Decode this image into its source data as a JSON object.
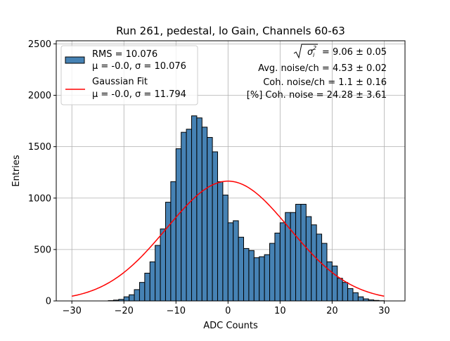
{
  "chart_data": {
    "type": "histogram",
    "title": "Run 261, pedestal, lo Gain, Channels 60-63",
    "xlabel": "ADC Counts",
    "ylabel": "Entries",
    "xlim": [
      -33,
      34
    ],
    "ylim": [
      0,
      2530
    ],
    "grid": true,
    "xticks": [
      -30,
      -20,
      -10,
      0,
      10,
      20,
      30
    ],
    "yticks": [
      0,
      500,
      1000,
      1500,
      2000,
      2500
    ],
    "bin_width": 1,
    "bins": [
      {
        "x0": -30,
        "count": 0
      },
      {
        "x0": -29,
        "count": 0
      },
      {
        "x0": -28,
        "count": 0
      },
      {
        "x0": -27,
        "count": 0
      },
      {
        "x0": -26,
        "count": 0
      },
      {
        "x0": -25,
        "count": 0
      },
      {
        "x0": -24,
        "count": 0
      },
      {
        "x0": -23,
        "count": 3
      },
      {
        "x0": -22,
        "count": 8
      },
      {
        "x0": -21,
        "count": 15
      },
      {
        "x0": -20,
        "count": 40
      },
      {
        "x0": -19,
        "count": 60
      },
      {
        "x0": -18,
        "count": 110
      },
      {
        "x0": -17,
        "count": 180
      },
      {
        "x0": -16,
        "count": 270
      },
      {
        "x0": -15,
        "count": 380
      },
      {
        "x0": -14,
        "count": 540
      },
      {
        "x0": -13,
        "count": 700
      },
      {
        "x0": -12,
        "count": 960
      },
      {
        "x0": -11,
        "count": 1160
      },
      {
        "x0": -10,
        "count": 1480
      },
      {
        "x0": -9,
        "count": 1640
      },
      {
        "x0": -8,
        "count": 1670
      },
      {
        "x0": -7,
        "count": 1800
      },
      {
        "x0": -6,
        "count": 1780
      },
      {
        "x0": -5,
        "count": 1690
      },
      {
        "x0": -4,
        "count": 1590
      },
      {
        "x0": -3,
        "count": 1450
      },
      {
        "x0": -2,
        "count": 1160
      },
      {
        "x0": -1,
        "count": 1030
      },
      {
        "x0": 0,
        "count": 760
      },
      {
        "x0": 1,
        "count": 780
      },
      {
        "x0": 2,
        "count": 620
      },
      {
        "x0": 3,
        "count": 510
      },
      {
        "x0": 4,
        "count": 490
      },
      {
        "x0": 5,
        "count": 420
      },
      {
        "x0": 6,
        "count": 430
      },
      {
        "x0": 7,
        "count": 450
      },
      {
        "x0": 8,
        "count": 560
      },
      {
        "x0": 9,
        "count": 660
      },
      {
        "x0": 10,
        "count": 760
      },
      {
        "x0": 11,
        "count": 860
      },
      {
        "x0": 12,
        "count": 860
      },
      {
        "x0": 13,
        "count": 940
      },
      {
        "x0": 14,
        "count": 940
      },
      {
        "x0": 15,
        "count": 820
      },
      {
        "x0": 16,
        "count": 740
      },
      {
        "x0": 17,
        "count": 650
      },
      {
        "x0": 18,
        "count": 560
      },
      {
        "x0": 19,
        "count": 380
      },
      {
        "x0": 20,
        "count": 340
      },
      {
        "x0": 21,
        "count": 220
      },
      {
        "x0": 22,
        "count": 180
      },
      {
        "x0": 23,
        "count": 120
      },
      {
        "x0": 24,
        "count": 80
      },
      {
        "x0": 25,
        "count": 40
      },
      {
        "x0": 26,
        "count": 20
      },
      {
        "x0": 27,
        "count": 10
      },
      {
        "x0": 28,
        "count": 5
      },
      {
        "x0": 29,
        "count": 2
      }
    ],
    "series": [
      {
        "name": "RMS = 10.076",
        "subname": "μ = -0.0, σ = 10.076",
        "kind": "histogram",
        "color": "#4682b4",
        "edge": "#000000"
      },
      {
        "name": "Gaussian Fit",
        "subname": "μ = -0.0, σ = 11.794",
        "kind": "line",
        "color": "#ff0000",
        "mu": 0.0,
        "sigma": 11.794,
        "amplitude": 1165,
        "x_range": [
          -30,
          30
        ]
      }
    ],
    "legend": {
      "position": "top-left",
      "entries": [
        {
          "line1": "RMS = 10.076",
          "line2": "μ = -0.0, σ = 10.076"
        },
        {
          "line1": "Gaussian Fit",
          "line2": "μ = -0.0, σ = 11.794"
        }
      ]
    },
    "annotations": {
      "sigma_sum_value": "= 9.06 ± 0.05",
      "avg_noise": "Avg. noise/ch = 4.53 ± 0.02",
      "coh_noise": "Coh. noise/ch = 1.1 ± 0.16",
      "pct_coh_noise": "[%] Coh. noise = 24.28 ± 3.61"
    }
  }
}
